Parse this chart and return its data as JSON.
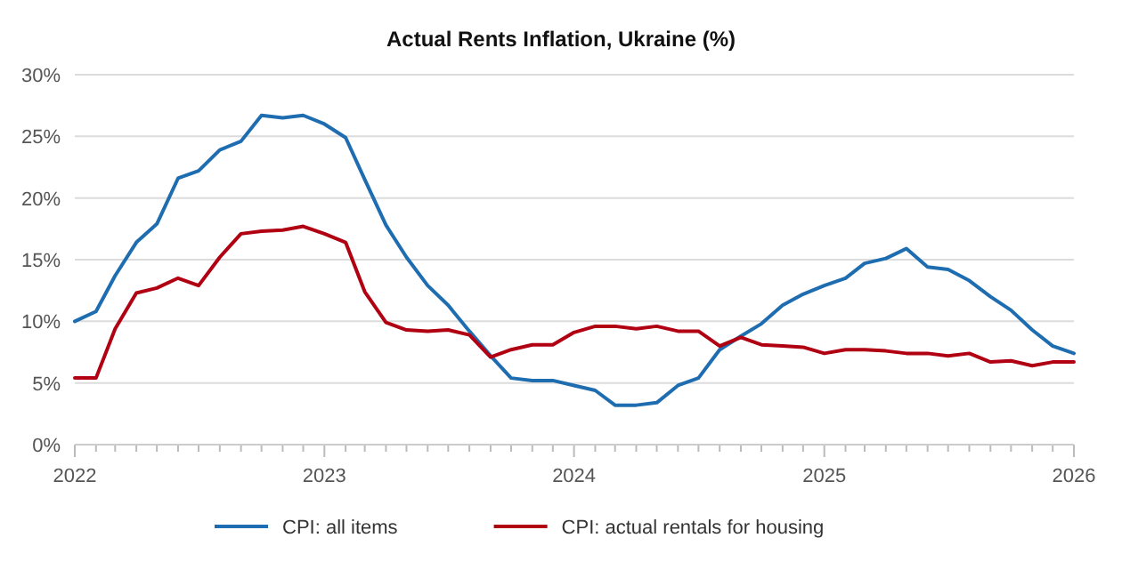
{
  "chart_data": {
    "type": "line",
    "title": "Actual Rents Inflation, Ukraine (%)",
    "x": [
      "2022-01",
      "2022-02",
      "2022-03",
      "2022-04",
      "2022-05",
      "2022-06",
      "2022-07",
      "2022-08",
      "2022-09",
      "2022-10",
      "2022-11",
      "2022-12",
      "2023-01",
      "2023-02",
      "2023-03",
      "2023-04",
      "2023-05",
      "2023-06",
      "2023-07",
      "2023-08",
      "2023-09",
      "2023-10",
      "2023-11",
      "2023-12",
      "2024-01",
      "2024-02",
      "2024-03",
      "2024-04",
      "2024-05",
      "2024-06",
      "2024-07",
      "2024-08",
      "2024-09",
      "2024-10",
      "2024-11",
      "2024-12",
      "2025-01",
      "2025-02",
      "2025-03",
      "2025-04",
      "2025-05",
      "2025-06",
      "2025-07",
      "2025-08",
      "2025-09",
      "2025-10",
      "2025-11",
      "2025-12",
      "2026-01"
    ],
    "series": [
      {
        "name": "CPI: all items",
        "color": "#1f6db1",
        "values": [
          10.0,
          10.8,
          13.7,
          16.4,
          17.9,
          21.6,
          22.2,
          23.9,
          24.6,
          26.7,
          26.5,
          26.7,
          26.0,
          24.9,
          21.5,
          17.8,
          15.2,
          12.9,
          11.3,
          9.2,
          7.2,
          5.4,
          5.2,
          5.2,
          4.8,
          4.4,
          3.2,
          3.2,
          3.4,
          4.8,
          5.4,
          7.7,
          8.8,
          9.8,
          11.3,
          12.2,
          12.9,
          13.5,
          14.7,
          15.1,
          15.9,
          14.4,
          14.2,
          13.3,
          12.0,
          10.9,
          9.3,
          8.0,
          7.4
        ]
      },
      {
        "name": "CPI: actual rentals for housing",
        "color": "#b00012",
        "values": [
          5.4,
          5.4,
          9.4,
          12.3,
          12.7,
          13.5,
          12.9,
          15.2,
          17.1,
          17.3,
          17.4,
          17.7,
          17.1,
          16.4,
          12.4,
          9.9,
          9.3,
          9.2,
          9.3,
          8.9,
          7.1,
          7.7,
          8.1,
          8.1,
          9.1,
          9.6,
          9.6,
          9.4,
          9.6,
          9.2,
          9.2,
          8.0,
          8.7,
          8.1,
          8.0,
          7.9,
          7.4,
          7.7,
          7.7,
          7.6,
          7.4,
          7.4,
          7.2,
          7.4,
          6.7,
          6.8,
          6.4,
          6.7,
          6.7
        ]
      }
    ],
    "xlim": [
      "2022-01",
      "2026-01"
    ],
    "xticks": [
      {
        "value": "2022-01",
        "label": "2022"
      },
      {
        "value": "2022-02",
        "label": null
      },
      {
        "value": "2022-03",
        "label": null
      },
      {
        "value": "2022-04",
        "label": null
      },
      {
        "value": "2022-05",
        "label": null
      },
      {
        "value": "2022-06",
        "label": null
      },
      {
        "value": "2022-07",
        "label": null
      },
      {
        "value": "2022-08",
        "label": null
      },
      {
        "value": "2022-09",
        "label": null
      },
      {
        "value": "2022-10",
        "label": null
      },
      {
        "value": "2022-11",
        "label": null
      },
      {
        "value": "2022-12",
        "label": null
      },
      {
        "value": "2023-01",
        "label": "2023"
      },
      {
        "value": "2023-02",
        "label": null
      },
      {
        "value": "2023-03",
        "label": null
      },
      {
        "value": "2023-04",
        "label": null
      },
      {
        "value": "2023-05",
        "label": null
      },
      {
        "value": "2023-06",
        "label": null
      },
      {
        "value": "2023-07",
        "label": null
      },
      {
        "value": "2023-08",
        "label": null
      },
      {
        "value": "2023-09",
        "label": null
      },
      {
        "value": "2023-10",
        "label": null
      },
      {
        "value": "2023-11",
        "label": null
      },
      {
        "value": "2023-12",
        "label": null
      },
      {
        "value": "2024-01",
        "label": "2024"
      },
      {
        "value": "2024-02",
        "label": null
      },
      {
        "value": "2024-03",
        "label": null
      },
      {
        "value": "2024-04",
        "label": null
      },
      {
        "value": "2024-05",
        "label": null
      },
      {
        "value": "2024-06",
        "label": null
      },
      {
        "value": "2024-07",
        "label": null
      },
      {
        "value": "2024-08",
        "label": null
      },
      {
        "value": "2024-09",
        "label": null
      },
      {
        "value": "2024-10",
        "label": null
      },
      {
        "value": "2024-11",
        "label": null
      },
      {
        "value": "2024-12",
        "label": null
      },
      {
        "value": "2025-01",
        "label": "2025"
      },
      {
        "value": "2025-02",
        "label": null
      },
      {
        "value": "2025-03",
        "label": null
      },
      {
        "value": "2025-04",
        "label": null
      },
      {
        "value": "2025-05",
        "label": null
      },
      {
        "value": "2025-06",
        "label": null
      },
      {
        "value": "2025-07",
        "label": null
      },
      {
        "value": "2025-08",
        "label": null
      },
      {
        "value": "2025-09",
        "label": null
      },
      {
        "value": "2025-10",
        "label": null
      },
      {
        "value": "2025-11",
        "label": null
      },
      {
        "value": "2025-12",
        "label": null
      },
      {
        "value": "2026-01",
        "label": "2026"
      }
    ],
    "ylim": [
      0,
      30
    ],
    "yticks": [
      {
        "value": 0,
        "label": "0%"
      },
      {
        "value": 5,
        "label": "5%"
      },
      {
        "value": 10,
        "label": "10%"
      },
      {
        "value": 15,
        "label": "15%"
      },
      {
        "value": 20,
        "label": "20%"
      },
      {
        "value": 25,
        "label": "25%"
      },
      {
        "value": 30,
        "label": "30%"
      }
    ],
    "grid": "y",
    "legend": "bottom",
    "marker": "none",
    "line_style": "solid"
  }
}
